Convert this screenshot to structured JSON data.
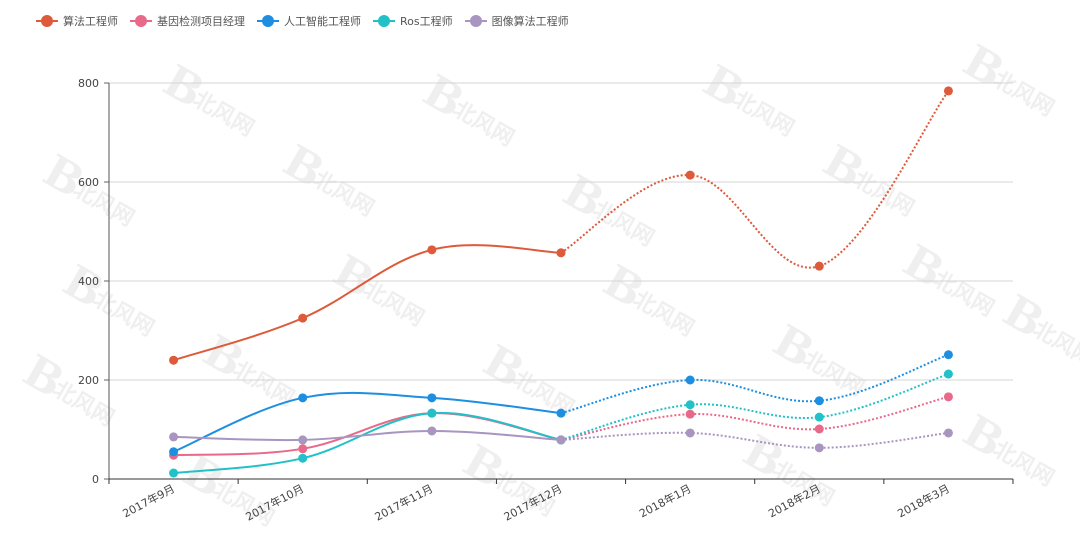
{
  "chart_data": {
    "type": "line",
    "title": "",
    "xlabel": "",
    "ylabel": "",
    "ylim": [
      0,
      800
    ],
    "yticks": [
      0,
      200,
      400,
      600,
      800
    ],
    "grid": true,
    "legend_position": "top-left",
    "categories": [
      "2017年9月",
      "2017年10月",
      "2017年11月",
      "2017年12月",
      "2018年1月",
      "2018年2月",
      "2018年3月"
    ],
    "solid_until_index": 3,
    "note": "Lines are solid for 2017 months and dotted (projected) from 2017年12月 onward",
    "series": [
      {
        "name": "算法工程师",
        "color": "#dd5a3a",
        "values": [
          240,
          325,
          463,
          457,
          614,
          430,
          784
        ]
      },
      {
        "name": "基因检测项目经理",
        "color": "#e8698a",
        "values": [
          48,
          61,
          133,
          79,
          131,
          101,
          166
        ]
      },
      {
        "name": "人工智能工程师",
        "color": "#1e8fe0",
        "values": [
          55,
          164,
          164,
          133,
          200,
          158,
          251
        ]
      },
      {
        "name": "Ros工程师",
        "color": "#22c1c8",
        "values": [
          12,
          42,
          133,
          79,
          150,
          125,
          212
        ]
      },
      {
        "name": "图像算法工程师",
        "color": "#a895c0",
        "values": [
          85,
          79,
          97,
          79,
          93,
          63,
          93
        ]
      }
    ]
  },
  "legend": {
    "items": [
      {
        "label": "算法工程师",
        "color": "#dd5a3a"
      },
      {
        "label": "基因检测项目经理",
        "color": "#e8698a"
      },
      {
        "label": "人工智能工程师",
        "color": "#1e8fe0"
      },
      {
        "label": "Ros工程师",
        "color": "#22c1c8"
      },
      {
        "label": "图像算法工程师",
        "color": "#a895c0"
      }
    ]
  },
  "watermark": {
    "text": "北风网"
  }
}
